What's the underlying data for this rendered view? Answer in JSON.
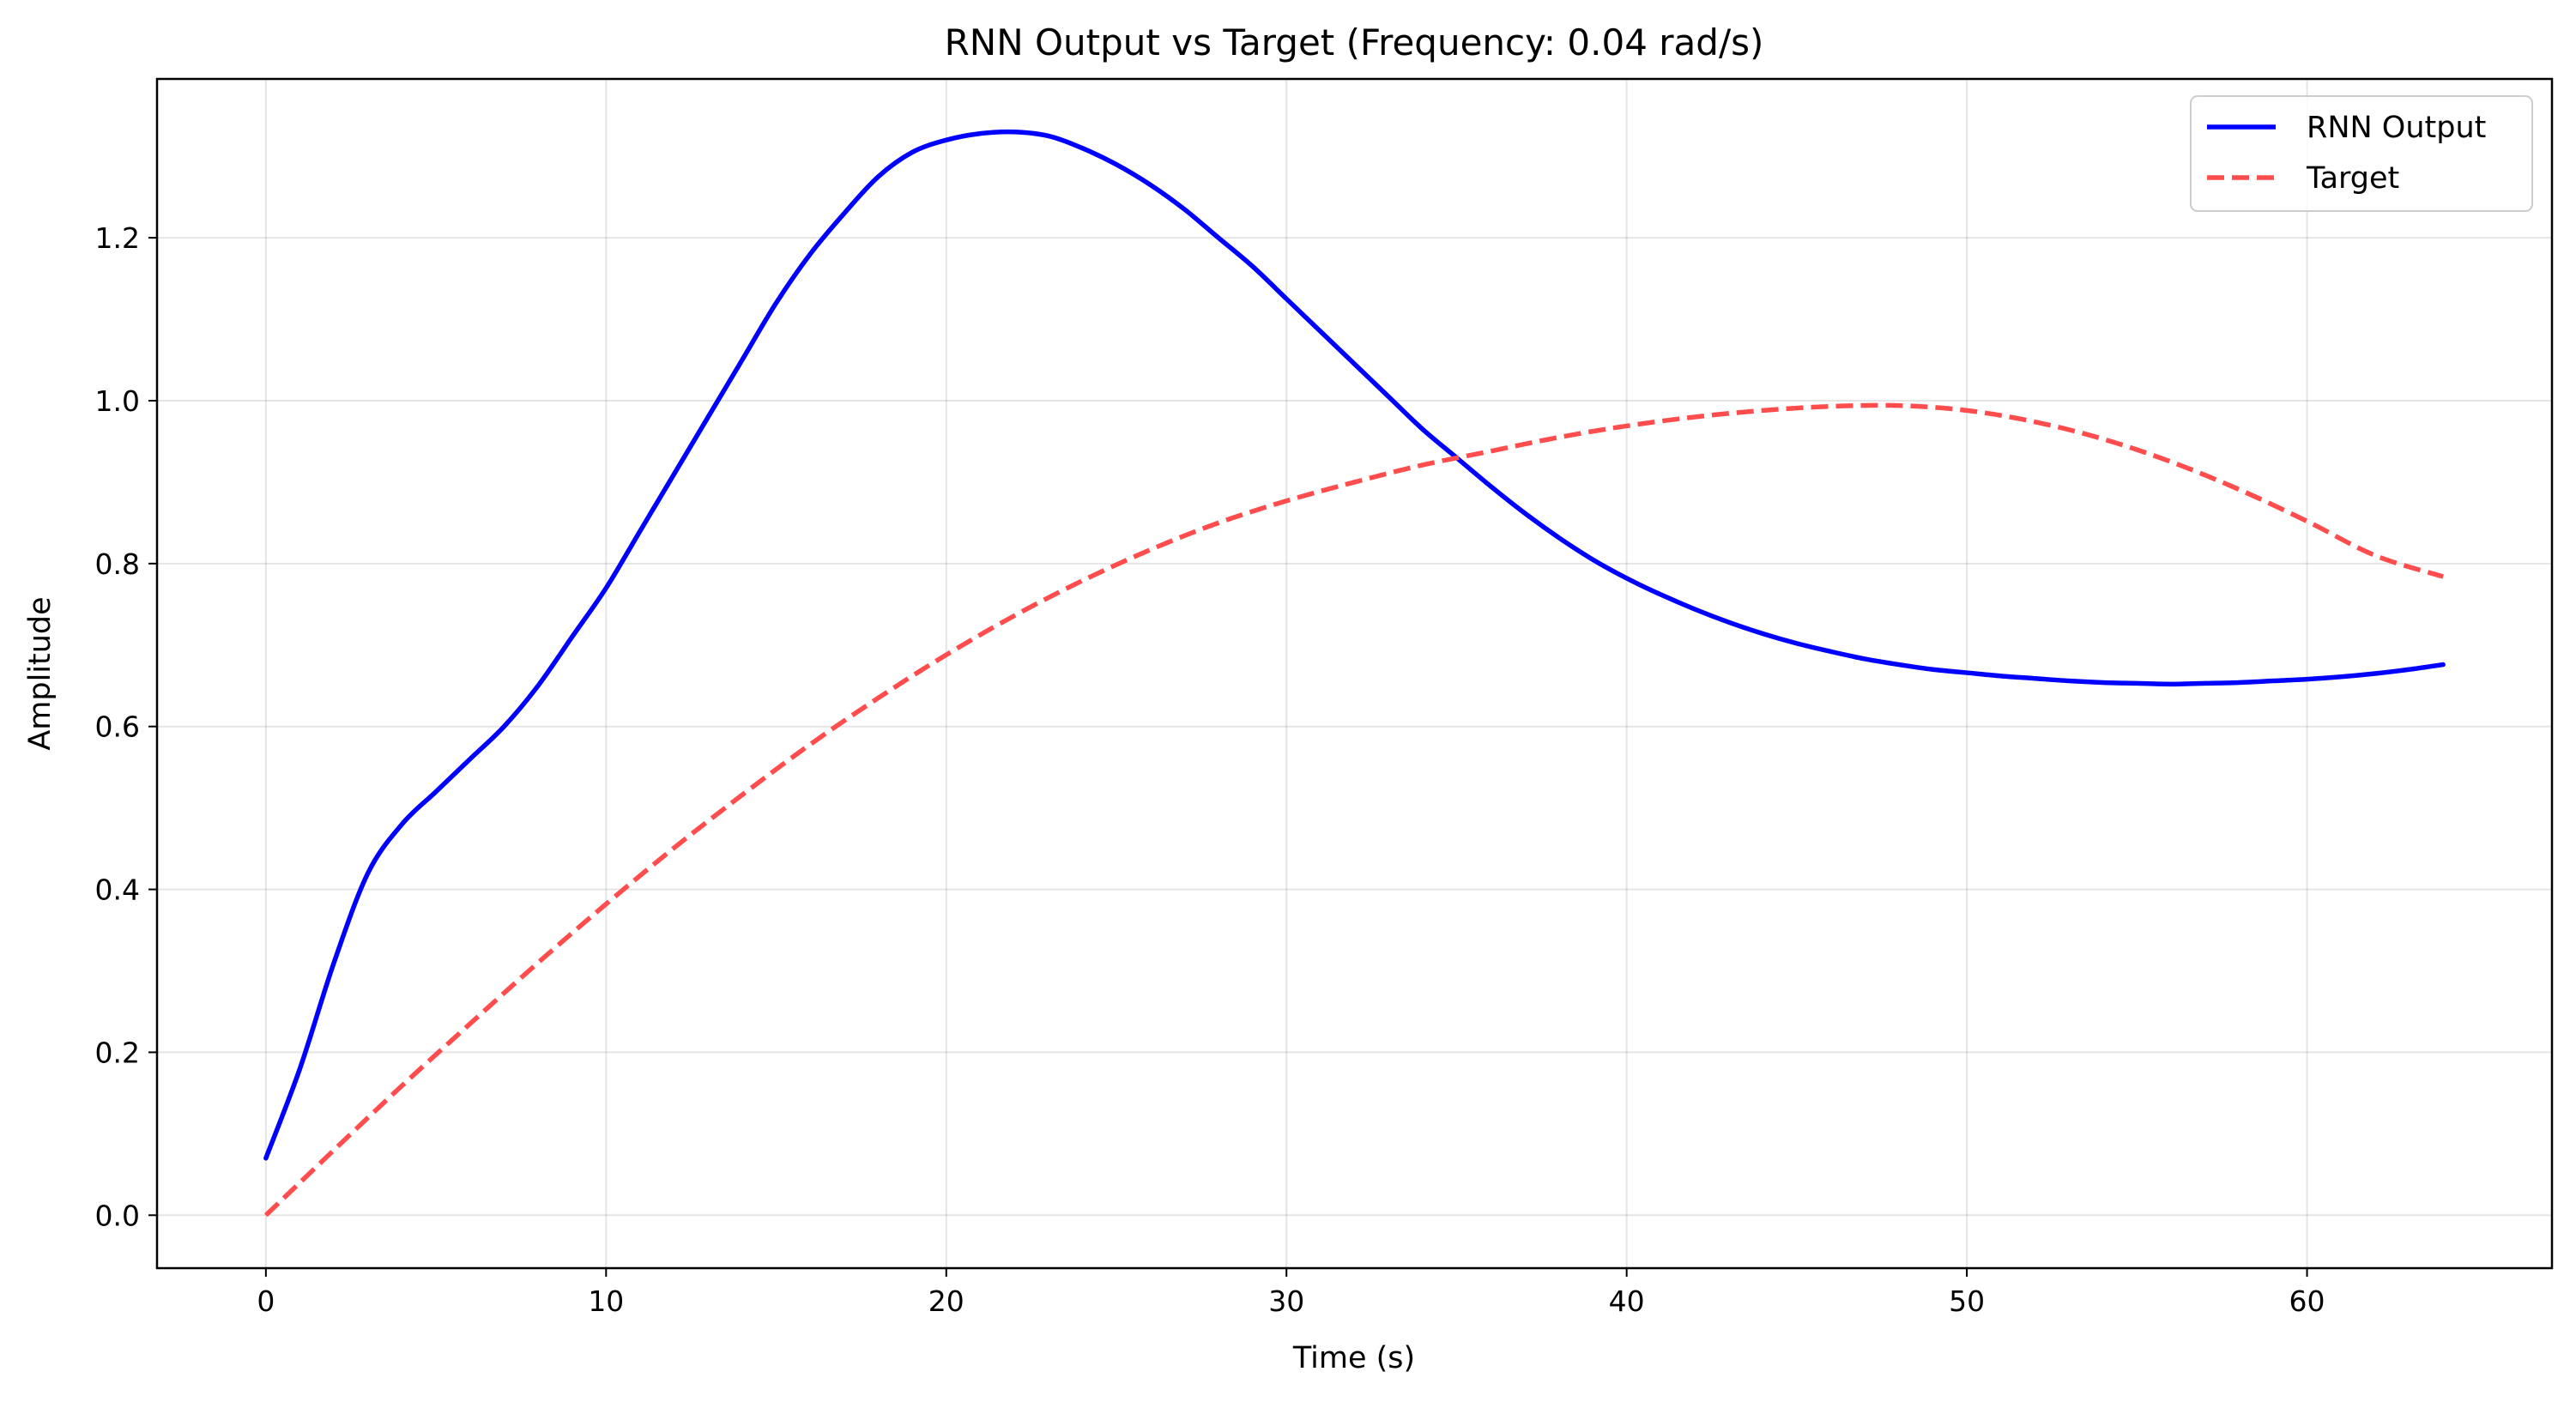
{
  "chart_data": {
    "type": "line",
    "title": "RNN Output vs Target (Frequency: 0.04 rad/s)",
    "xlabel": "Time (s)",
    "ylabel": "Amplitude",
    "xlim": [
      -3.2,
      67.2
    ],
    "ylim": [
      -0.065,
      1.395
    ],
    "xticks": [
      0,
      10,
      20,
      30,
      40,
      50,
      60
    ],
    "xtick_labels": [
      "0",
      "10",
      "20",
      "30",
      "40",
      "50",
      "60"
    ],
    "yticks": [
      0.0,
      0.2,
      0.4,
      0.6,
      0.8,
      1.0,
      1.2
    ],
    "ytick_labels": [
      "0.0",
      "0.2",
      "0.4",
      "0.6",
      "0.8",
      "1.0",
      "1.2"
    ],
    "grid": true,
    "legend_position": "top-right",
    "series": [
      {
        "name": "RNN Output",
        "color": "#0000ff",
        "style": "solid",
        "x": [
          0,
          1,
          2,
          3,
          4,
          5,
          6,
          7,
          8,
          9,
          10,
          11,
          12,
          13,
          14,
          15,
          16,
          17,
          18,
          19,
          20,
          21,
          22,
          23,
          24,
          25,
          26,
          27,
          28,
          29,
          30,
          31,
          32,
          33,
          34,
          35,
          36,
          37,
          38,
          39,
          40,
          41,
          42,
          43,
          44,
          45,
          46,
          47,
          48,
          49,
          50,
          51,
          52,
          53,
          54,
          55,
          56,
          57,
          58,
          59,
          60,
          61,
          62,
          63,
          64
        ],
        "y": [
          0.07,
          0.18,
          0.31,
          0.42,
          0.48,
          0.52,
          0.56,
          0.6,
          0.65,
          0.71,
          0.77,
          0.84,
          0.91,
          0.98,
          1.05,
          1.12,
          1.18,
          1.23,
          1.275,
          1.305,
          1.32,
          1.328,
          1.33,
          1.325,
          1.31,
          1.29,
          1.265,
          1.235,
          1.2,
          1.165,
          1.125,
          1.085,
          1.045,
          1.005,
          0.965,
          0.93,
          0.895,
          0.862,
          0.832,
          0.805,
          0.782,
          0.762,
          0.744,
          0.728,
          0.714,
          0.702,
          0.692,
          0.683,
          0.676,
          0.67,
          0.666,
          0.662,
          0.659,
          0.656,
          0.654,
          0.653,
          0.652,
          0.653,
          0.654,
          0.656,
          0.658,
          0.661,
          0.665,
          0.67,
          0.676
        ]
      },
      {
        "name": "Target",
        "color": "#ff4d4d",
        "style": "dashed",
        "x": [
          0,
          2,
          4,
          6,
          8,
          10,
          12,
          14,
          16,
          18,
          20,
          22,
          24,
          26,
          28,
          30,
          32,
          34,
          36,
          38,
          40,
          42,
          44,
          46,
          48,
          50,
          52,
          54,
          56,
          58,
          60,
          62,
          64
        ],
        "y": [
          0.0,
          0.08,
          0.159,
          0.235,
          0.31,
          0.382,
          0.451,
          0.516,
          0.578,
          0.635,
          0.688,
          0.736,
          0.779,
          0.817,
          0.85,
          0.877,
          0.9,
          0.921,
          0.938,
          0.955,
          0.969,
          0.98,
          0.988,
          0.993,
          0.994,
          0.988,
          0.974,
          0.953,
          0.925,
          0.891,
          0.852,
          0.81,
          0.784
        ]
      }
    ]
  }
}
